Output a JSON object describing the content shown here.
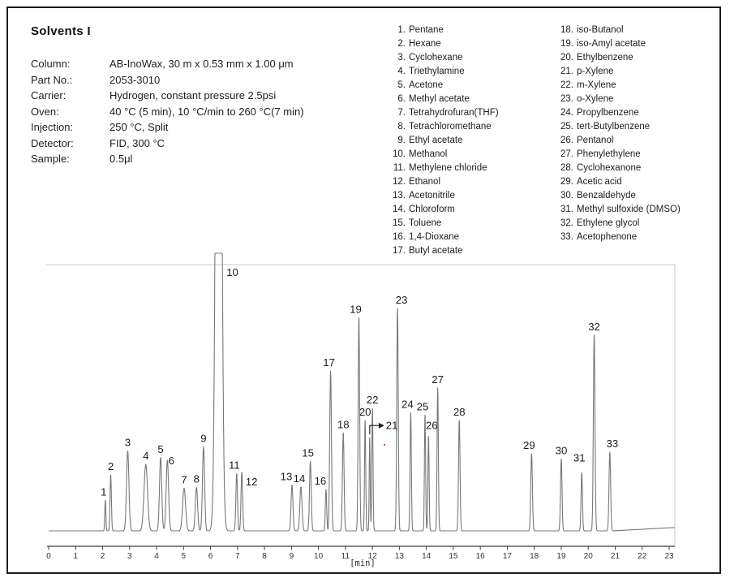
{
  "title": "Solvents I",
  "conditions": [
    {
      "label": "Column:",
      "value": "AB-InoWax, 30 m x 0.53 mm x 1.00 μm"
    },
    {
      "label": "Part No.:",
      "value": "2053-3010"
    },
    {
      "label": "Carrier:",
      "value": "Hydrogen, constant pressure 2.5psi"
    },
    {
      "label": "Oven:",
      "value": "40 °C (5 min), 10 °C/min to 260 °C(7 min)"
    },
    {
      "label": "Injection:",
      "value": "250 °C, Split"
    },
    {
      "label": "Detector:",
      "value": "FID, 300 °C"
    },
    {
      "label": "Sample:",
      "value": "0.5μl"
    }
  ],
  "peak_list": {
    "column1": [
      {
        "num": "1.",
        "name": "Pentane"
      },
      {
        "num": "2.",
        "name": "Hexane"
      },
      {
        "num": "3.",
        "name": "Cyclohexane"
      },
      {
        "num": "4.",
        "name": "Triethylamine"
      },
      {
        "num": "5.",
        "name": "Acetone"
      },
      {
        "num": "6.",
        "name": "Methyl acetate"
      },
      {
        "num": "7.",
        "name": "Tetrahydrofuran(THF)"
      },
      {
        "num": "8.",
        "name": "Tetrachloromethane"
      },
      {
        "num": "9.",
        "name": "Ethyl acetate"
      },
      {
        "num": "10.",
        "name": "Methanol"
      },
      {
        "num": "11.",
        "name": "Methylene chloride"
      },
      {
        "num": "12.",
        "name": "Ethanol"
      },
      {
        "num": "13.",
        "name": "Acetonitrile"
      },
      {
        "num": "14.",
        "name": "Chloroform"
      },
      {
        "num": "15.",
        "name": "Toluene"
      },
      {
        "num": "16.",
        "name": "1,4-Dioxane"
      },
      {
        "num": "17.",
        "name": "Butyl acetate"
      }
    ],
    "column2": [
      {
        "num": "18.",
        "name": "iso-Butanol"
      },
      {
        "num": "19.",
        "name": "iso-Amyl acetate"
      },
      {
        "num": "20.",
        "name": "Ethylbenzene"
      },
      {
        "num": "21.",
        "name": "p-Xylene"
      },
      {
        "num": "22.",
        "name": "m-Xylene"
      },
      {
        "num": "23.",
        "name": "o-Xylene"
      },
      {
        "num": "24.",
        "name": "Propylbenzene"
      },
      {
        "num": "25.",
        "name": "tert-Butylbenzene"
      },
      {
        "num": "26.",
        "name": "Pentanol"
      },
      {
        "num": "27.",
        "name": "Phenylethylene"
      },
      {
        "num": "28.",
        "name": "Cyclohexanone"
      },
      {
        "num": "29.",
        "name": "Acetic acid"
      },
      {
        "num": "30.",
        "name": "Benzaldehyde"
      },
      {
        "num": "31.",
        "name": "Methyl sulfoxide (DMSO)"
      },
      {
        "num": "32.",
        "name": "Ethylene glycol"
      },
      {
        "num": "33.",
        "name": "Acetophenone"
      }
    ]
  },
  "chart_data": {
    "type": "line",
    "title": "",
    "xlabel": "[min]",
    "ylabel": "",
    "xlim": [
      0,
      23.2
    ],
    "x_ticks": [
      0,
      1,
      2,
      3,
      4,
      5,
      6,
      7,
      8,
      9,
      10,
      11,
      12,
      13,
      14,
      15,
      16,
      17,
      18,
      19,
      20,
      21,
      22,
      23
    ],
    "grid": false,
    "trace_color": "#787878",
    "axis_color": "#3f3f3f",
    "box_color": "#c4c4c4",
    "note": "peaks: t = retention time in min, h = height as fraction of plot height, w = gaussian sigma in min; peak 10 (Methanol) is off-scale/clipped at top",
    "peaks": [
      {
        "n": "1",
        "t": 2.1,
        "h": 0.115,
        "w": 0.02,
        "dx": -2
      },
      {
        "n": "2",
        "t": 2.3,
        "h": 0.21,
        "w": 0.025
      },
      {
        "n": "3",
        "t": 2.93,
        "h": 0.3,
        "w": 0.045
      },
      {
        "n": "4",
        "t": 3.6,
        "h": 0.25,
        "w": 0.065
      },
      {
        "n": "5",
        "t": 4.15,
        "h": 0.275,
        "w": 0.042
      },
      {
        "n": "6",
        "t": 4.4,
        "h": 0.265,
        "w": 0.045,
        "dx": 5,
        "dy": 11
      },
      {
        "n": "7",
        "t": 5.02,
        "h": 0.16,
        "w": 0.055
      },
      {
        "n": "8",
        "t": 5.48,
        "h": 0.163,
        "w": 0.042
      },
      {
        "n": "9",
        "t": 5.74,
        "h": 0.315,
        "w": 0.04
      },
      {
        "n": "10",
        "t": 6.3,
        "h": 4.0,
        "w": 0.085,
        "clip": true,
        "label_mode": "top-right"
      },
      {
        "n": "11",
        "t": 6.97,
        "h": 0.215,
        "w": 0.03,
        "dx": -3
      },
      {
        "n": "12",
        "t": 7.16,
        "h": 0.22,
        "w": 0.03,
        "dx": 12,
        "dy": 22
      },
      {
        "n": "13",
        "t": 9.02,
        "h": 0.172,
        "w": 0.035,
        "dx": -7
      },
      {
        "n": "14",
        "t": 9.35,
        "h": 0.165,
        "w": 0.04,
        "dx": -2
      },
      {
        "n": "15",
        "t": 9.7,
        "h": 0.26,
        "w": 0.032,
        "dx": -3
      },
      {
        "n": "16",
        "t": 10.28,
        "h": 0.155,
        "w": 0.025,
        "dx": -7
      },
      {
        "n": "17",
        "t": 10.45,
        "h": 0.6,
        "w": 0.032,
        "dx": -2
      },
      {
        "n": "18",
        "t": 10.92,
        "h": 0.368,
        "w": 0.03
      },
      {
        "n": "19",
        "t": 11.5,
        "h": 0.8,
        "w": 0.028,
        "dx": -4
      },
      {
        "n": "20",
        "t": 11.73,
        "h": 0.415,
        "w": 0.022
      },
      {
        "n": "21",
        "t": 11.9,
        "h": 0.35,
        "w": 0.018,
        "label_mode": "arrow"
      },
      {
        "n": "22",
        "t": 12.0,
        "h": 0.46,
        "w": 0.022
      },
      {
        "n": "23",
        "t": 12.93,
        "h": 0.835,
        "w": 0.028,
        "dx": 5
      },
      {
        "n": "24",
        "t": 13.42,
        "h": 0.443,
        "w": 0.024,
        "dx": -4
      },
      {
        "n": "25",
        "t": 13.95,
        "h": 0.435,
        "w": 0.022,
        "dx": -3
      },
      {
        "n": "26",
        "t": 14.08,
        "h": 0.355,
        "w": 0.022,
        "dx": 4,
        "dy": -3
      },
      {
        "n": "27",
        "t": 14.42,
        "h": 0.537,
        "w": 0.024
      },
      {
        "n": "28",
        "t": 15.22,
        "h": 0.415,
        "w": 0.028
      },
      {
        "n": "29",
        "t": 17.9,
        "h": 0.29,
        "w": 0.03,
        "dx": -3
      },
      {
        "n": "30",
        "t": 19.0,
        "h": 0.27,
        "w": 0.028
      },
      {
        "n": "31",
        "t": 19.76,
        "h": 0.218,
        "w": 0.026,
        "dx": -3,
        "dy": -8
      },
      {
        "n": "32",
        "t": 20.22,
        "h": 0.735,
        "w": 0.03
      },
      {
        "n": "33",
        "t": 20.8,
        "h": 0.295,
        "w": 0.03,
        "dx": 3
      }
    ]
  }
}
